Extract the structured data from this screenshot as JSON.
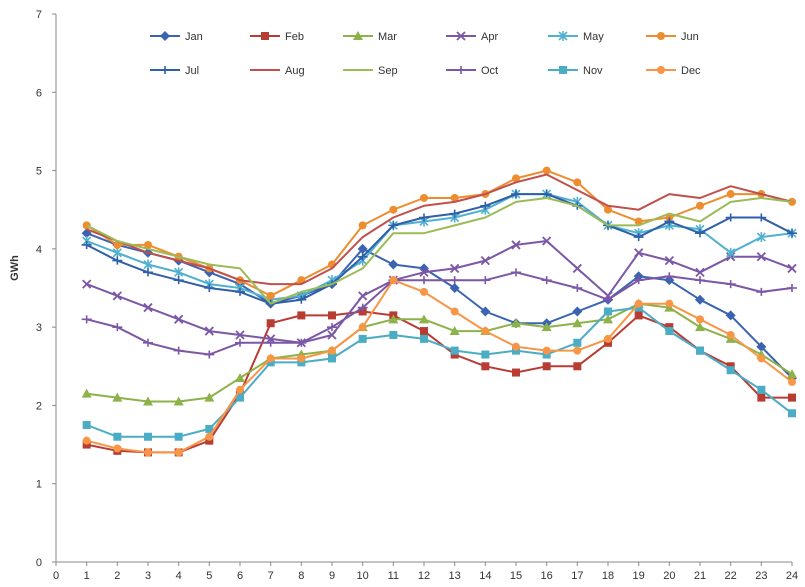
{
  "chart_data": {
    "type": "line",
    "ylabel": "GWh",
    "xlabel": "",
    "title": "",
    "xlim": [
      0,
      24
    ],
    "ylim": [
      0,
      7
    ],
    "x_ticks": [
      0,
      1,
      2,
      3,
      4,
      5,
      6,
      7,
      8,
      9,
      10,
      11,
      12,
      13,
      14,
      15,
      16,
      17,
      18,
      19,
      20,
      21,
      22,
      23,
      24
    ],
    "y_ticks": [
      0,
      1,
      2,
      3,
      4,
      5,
      6,
      7
    ],
    "x": [
      1,
      2,
      3,
      4,
      5,
      6,
      7,
      8,
      9,
      10,
      11,
      12,
      13,
      14,
      15,
      16,
      17,
      18,
      19,
      20,
      21,
      22,
      23,
      24
    ],
    "legend_position": "top",
    "grid": false,
    "series": [
      {
        "name": "Jan",
        "color": "#3b63b0",
        "marker": "diamond",
        "values": [
          4.2,
          4.05,
          3.95,
          3.85,
          3.7,
          3.55,
          3.3,
          3.4,
          3.55,
          4.0,
          3.8,
          3.75,
          3.5,
          3.2,
          3.05,
          3.05,
          3.2,
          3.35,
          3.65,
          3.6,
          3.35,
          3.15,
          2.75,
          2.35
        ]
      },
      {
        "name": "Feb",
        "color": "#b83c32",
        "marker": "square",
        "values": [
          1.5,
          1.42,
          1.4,
          1.4,
          1.55,
          2.15,
          3.05,
          3.15,
          3.15,
          3.2,
          3.15,
          2.95,
          2.65,
          2.5,
          2.42,
          2.5,
          2.5,
          2.8,
          3.15,
          3.0,
          2.7,
          2.5,
          2.1,
          2.1
        ]
      },
      {
        "name": "Mar",
        "color": "#8db24a",
        "marker": "triangle",
        "values": [
          2.15,
          2.1,
          2.05,
          2.05,
          2.1,
          2.35,
          2.6,
          2.65,
          2.7,
          3.0,
          3.1,
          3.1,
          2.95,
          2.95,
          3.05,
          3.0,
          3.05,
          3.1,
          3.3,
          3.25,
          3.0,
          2.85,
          2.65,
          2.4
        ]
      },
      {
        "name": "Apr",
        "color": "#7b57a6",
        "marker": "x",
        "values": [
          3.55,
          3.4,
          3.25,
          3.1,
          2.95,
          2.9,
          2.85,
          2.8,
          2.9,
          3.4,
          3.6,
          3.7,
          3.75,
          3.85,
          4.05,
          4.1,
          3.75,
          3.4,
          3.95,
          3.85,
          3.7,
          3.9,
          3.9,
          3.75
        ]
      },
      {
        "name": "May",
        "color": "#4fb1cf",
        "marker": "star",
        "values": [
          4.1,
          3.95,
          3.8,
          3.7,
          3.55,
          3.5,
          3.35,
          3.4,
          3.6,
          3.85,
          4.3,
          4.35,
          4.4,
          4.5,
          4.7,
          4.7,
          4.6,
          4.3,
          4.2,
          4.3,
          4.25,
          3.95,
          4.15,
          4.2
        ]
      },
      {
        "name": "Jun",
        "color": "#ed8d2f",
        "marker": "circle",
        "values": [
          4.3,
          4.05,
          4.05,
          3.9,
          3.75,
          3.6,
          3.4,
          3.6,
          3.8,
          4.3,
          4.5,
          4.65,
          4.65,
          4.7,
          4.9,
          5.0,
          4.85,
          4.5,
          4.35,
          4.4,
          4.55,
          4.7,
          4.7,
          4.6
        ]
      },
      {
        "name": "Jul",
        "color": "#2f5fa8",
        "marker": "plus",
        "values": [
          4.05,
          3.85,
          3.7,
          3.6,
          3.5,
          3.45,
          3.3,
          3.35,
          3.55,
          3.9,
          4.3,
          4.4,
          4.45,
          4.55,
          4.7,
          4.7,
          4.55,
          4.3,
          4.15,
          4.35,
          4.2,
          4.4,
          4.4,
          4.2
        ]
      },
      {
        "name": "Aug",
        "color": "#c0504d",
        "marker": "none",
        "values": [
          4.25,
          4.1,
          3.95,
          3.85,
          3.75,
          3.6,
          3.55,
          3.55,
          3.75,
          4.15,
          4.4,
          4.55,
          4.6,
          4.7,
          4.85,
          4.95,
          4.75,
          4.55,
          4.5,
          4.7,
          4.65,
          4.8,
          4.7,
          4.6
        ]
      },
      {
        "name": "Sep",
        "color": "#9bbb59",
        "marker": "none",
        "values": [
          4.3,
          4.1,
          4.0,
          3.9,
          3.8,
          3.75,
          3.3,
          3.45,
          3.55,
          3.75,
          4.2,
          4.2,
          4.3,
          4.4,
          4.6,
          4.65,
          4.55,
          4.3,
          4.3,
          4.45,
          4.35,
          4.6,
          4.65,
          4.6
        ]
      },
      {
        "name": "Oct",
        "color": "#7b57a6",
        "marker": "plus",
        "values": [
          3.1,
          3.0,
          2.8,
          2.7,
          2.65,
          2.8,
          2.8,
          2.8,
          3.0,
          3.25,
          3.6,
          3.6,
          3.6,
          3.6,
          3.7,
          3.6,
          3.5,
          3.35,
          3.6,
          3.65,
          3.6,
          3.55,
          3.45,
          3.5
        ]
      },
      {
        "name": "Nov",
        "color": "#4bacc6",
        "marker": "square",
        "values": [
          1.75,
          1.6,
          1.6,
          1.6,
          1.7,
          2.1,
          2.55,
          2.55,
          2.6,
          2.85,
          2.9,
          2.85,
          2.7,
          2.65,
          2.7,
          2.65,
          2.8,
          3.2,
          3.25,
          2.95,
          2.7,
          2.45,
          2.2,
          1.9
        ]
      },
      {
        "name": "Dec",
        "color": "#f79646",
        "marker": "circle",
        "values": [
          1.55,
          1.45,
          1.4,
          1.4,
          1.6,
          2.2,
          2.6,
          2.6,
          2.7,
          3.0,
          3.6,
          3.45,
          3.2,
          2.95,
          2.75,
          2.7,
          2.7,
          2.85,
          3.3,
          3.3,
          3.1,
          2.9,
          2.6,
          2.3
        ]
      }
    ]
  }
}
